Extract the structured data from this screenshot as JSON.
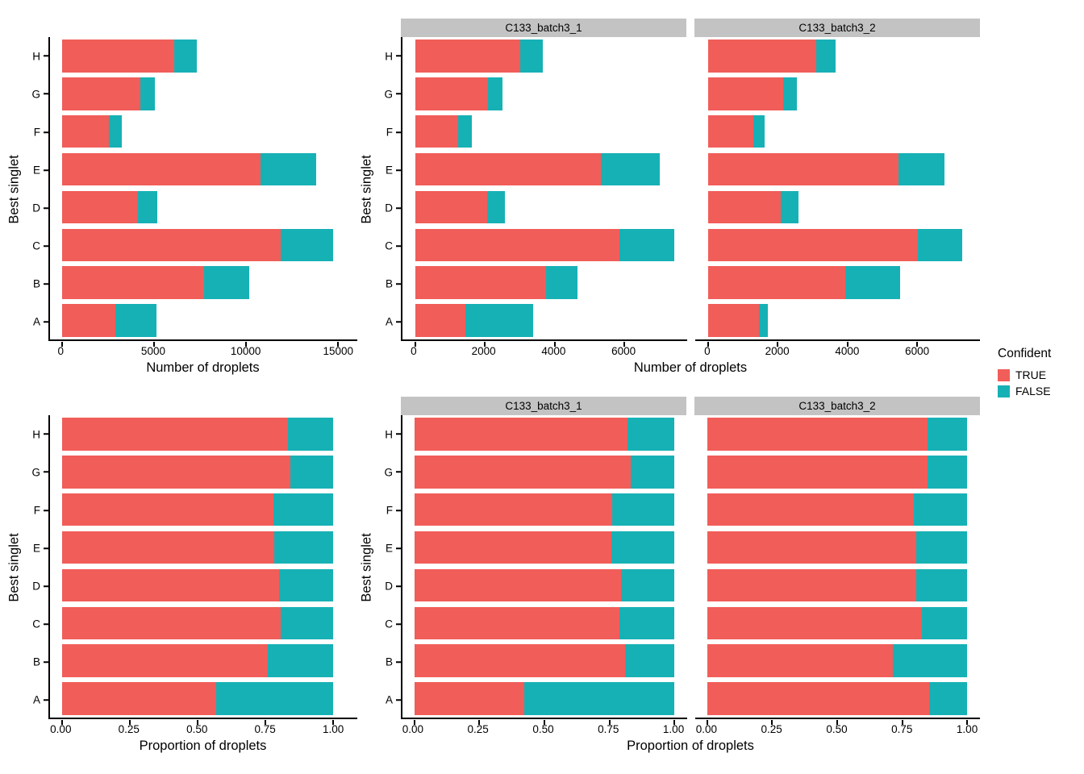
{
  "figure": {
    "background": "#ffffff"
  },
  "colors": {
    "true": "#F15D59",
    "false": "#16B1B5",
    "strip_bg": "#C3C3C3",
    "axis": "#000000"
  },
  "legend": {
    "title": "Confident",
    "items": [
      {
        "label": "TRUE",
        "color": "#F15D59"
      },
      {
        "label": "FALSE",
        "color": "#16B1B5"
      }
    ]
  },
  "facet_titles": [
    "C133_batch3_1",
    "C133_batch3_2"
  ],
  "chart_data": [
    {
      "id": "count_overall",
      "type": "bar",
      "orientation": "horizontal",
      "stacked": true,
      "categories": [
        "H",
        "G",
        "F",
        "E",
        "D",
        "C",
        "B",
        "A"
      ],
      "series": [
        {
          "name": "TRUE",
          "color": "#F15D59",
          "values": [
            6100,
            4240,
            2520,
            10780,
            4130,
            11870,
            7690,
            2890
          ]
        },
        {
          "name": "FALSE",
          "color": "#16B1B5",
          "values": [
            1220,
            810,
            720,
            3010,
            1040,
            2830,
            2460,
            2210
          ]
        }
      ],
      "xlabel": "Number of droplets",
      "ylabel": "Best singlet",
      "xticks": {
        "values": [
          0,
          5000,
          10000,
          15000
        ],
        "labels": [
          "0",
          "5000",
          "10000",
          "15000"
        ]
      },
      "xlim": [
        0,
        15750
      ],
      "grid": false,
      "panels": null
    },
    {
      "id": "count_by_sample",
      "type": "bar",
      "orientation": "horizontal",
      "stacked": true,
      "categories": [
        "H",
        "G",
        "F",
        "E",
        "D",
        "C",
        "B",
        "A"
      ],
      "xlabel": "Number of droplets",
      "ylabel": "Best singlet",
      "xticks": {
        "values": [
          0,
          2000,
          4000,
          6000
        ],
        "labels": [
          "0",
          "2000",
          "4000",
          "6000"
        ]
      },
      "xlim": [
        0,
        7800
      ],
      "grid": false,
      "panels": [
        {
          "title": "C133_batch3_1",
          "series": [
            {
              "name": "TRUE",
              "color": "#F15D59",
              "values": [
                3000,
                2080,
                1230,
                5330,
                2050,
                5850,
                3760,
                1430
              ]
            },
            {
              "name": "FALSE",
              "color": "#16B1B5",
              "values": [
                660,
                420,
                385,
                1690,
                530,
                1570,
                880,
                1960
              ]
            }
          ]
        },
        {
          "title": "C133_batch3_2",
          "series": [
            {
              "name": "TRUE",
              "color": "#F15D59",
              "values": [
                3100,
                2160,
                1290,
                5450,
                2080,
                6020,
                3930,
                1460
              ]
            },
            {
              "name": "FALSE",
              "color": "#16B1B5",
              "values": [
                560,
                390,
                335,
                1320,
                510,
                1260,
                1580,
                250
              ]
            }
          ]
        }
      ]
    },
    {
      "id": "prop_overall",
      "type": "bar",
      "orientation": "horizontal",
      "stacked": true,
      "categories": [
        "H",
        "G",
        "F",
        "E",
        "D",
        "C",
        "B",
        "A"
      ],
      "series": [
        {
          "name": "TRUE",
          "color": "#F15D59",
          "values": [
            0.833,
            0.84,
            0.778,
            0.782,
            0.799,
            0.807,
            0.758,
            0.567
          ]
        },
        {
          "name": "FALSE",
          "color": "#16B1B5",
          "values": [
            0.167,
            0.16,
            0.222,
            0.218,
            0.201,
            0.193,
            0.242,
            0.433
          ]
        }
      ],
      "xlabel": "Proportion of droplets",
      "ylabel": "Best singlet",
      "xticks": {
        "values": [
          0,
          0.25,
          0.5,
          0.75,
          1
        ],
        "labels": [
          "0.00",
          "0.25",
          "0.50",
          "0.75",
          "1.00"
        ]
      },
      "xlim": [
        0,
        1.04
      ],
      "grid": false,
      "panels": null
    },
    {
      "id": "prop_by_sample",
      "type": "bar",
      "orientation": "horizontal",
      "stacked": true,
      "categories": [
        "H",
        "G",
        "F",
        "E",
        "D",
        "C",
        "B",
        "A"
      ],
      "xlabel": "Proportion of droplets",
      "ylabel": "Best singlet",
      "xticks": {
        "values": [
          0,
          0.25,
          0.5,
          0.75,
          1
        ],
        "labels": [
          "0.00",
          "0.25",
          "0.50",
          "0.75",
          "1.00"
        ]
      },
      "xlim": [
        0,
        1.04
      ],
      "grid": false,
      "panels": [
        {
          "title": "C133_batch3_1",
          "series": [
            {
              "name": "TRUE",
              "color": "#F15D59",
              "values": [
                0.82,
                0.832,
                0.762,
                0.759,
                0.795,
                0.788,
                0.81,
                0.422
              ]
            },
            {
              "name": "FALSE",
              "color": "#16B1B5",
              "values": [
                0.18,
                0.168,
                0.238,
                0.241,
                0.205,
                0.212,
                0.19,
                0.578
              ]
            }
          ]
        },
        {
          "title": "C133_batch3_2",
          "series": [
            {
              "name": "TRUE",
              "color": "#F15D59",
              "values": [
                0.847,
                0.847,
                0.794,
                0.805,
                0.803,
                0.827,
                0.713,
                0.854
              ]
            },
            {
              "name": "FALSE",
              "color": "#16B1B5",
              "values": [
                0.153,
                0.153,
                0.206,
                0.195,
                0.197,
                0.173,
                0.287,
                0.146
              ]
            }
          ]
        }
      ]
    }
  ]
}
